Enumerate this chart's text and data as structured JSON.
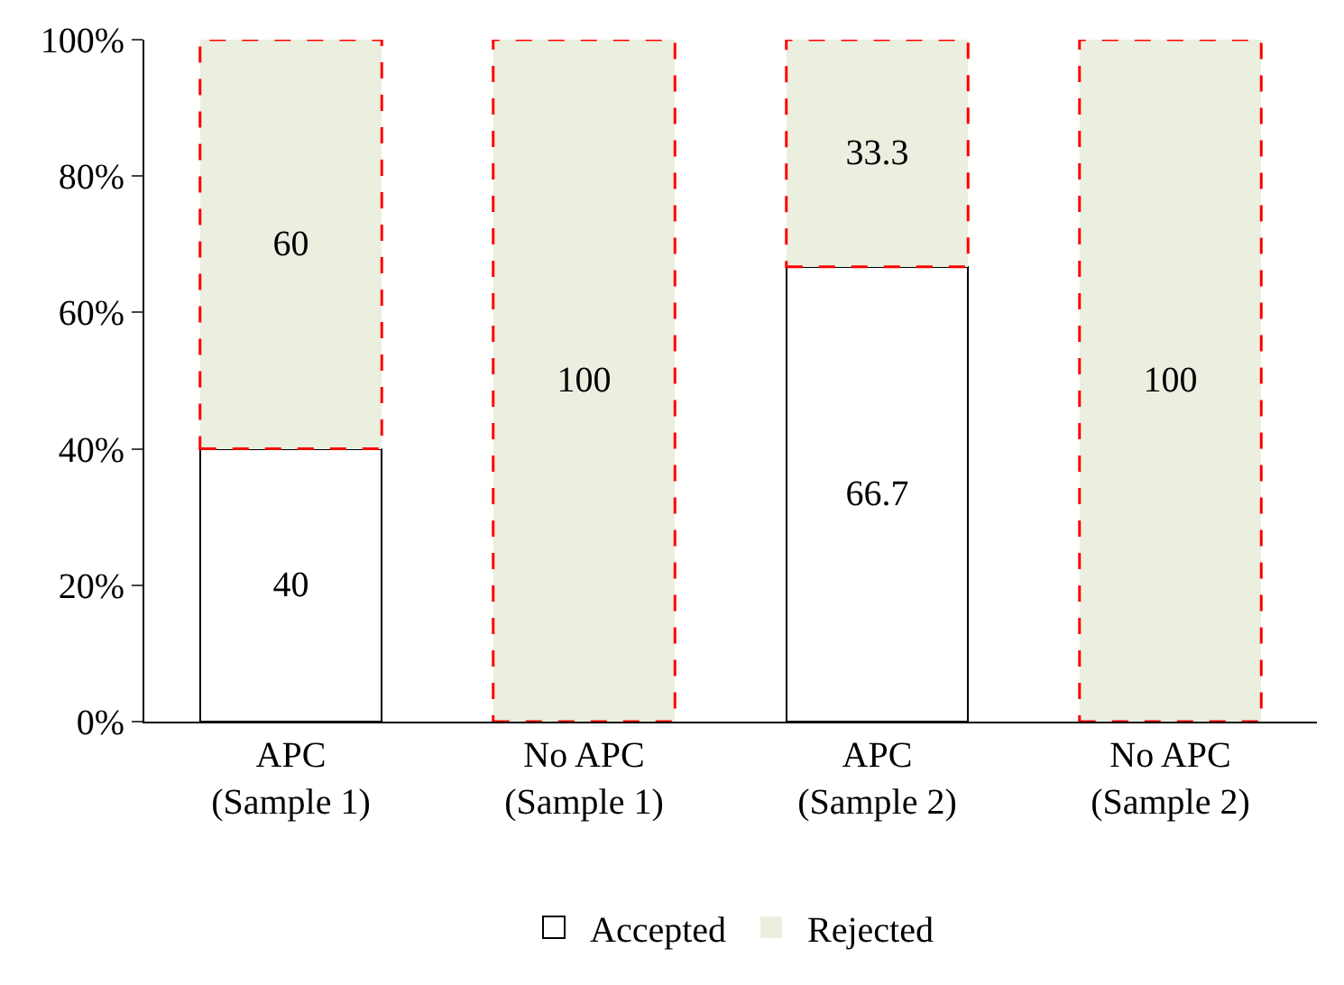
{
  "chart_data": {
    "type": "bar",
    "stacked": true,
    "categories": [
      "APC\n(Sample 1)",
      "No APC\n(Sample 1)",
      "APC\n(Sample 2)",
      "No APC\n(Sample 2)"
    ],
    "series": [
      {
        "name": "Accepted",
        "color": "#ffffff",
        "line_style": "solid",
        "values": [
          40,
          0,
          66.7,
          0
        ],
        "value_labels": [
          "40",
          null,
          "66.7",
          null
        ]
      },
      {
        "name": "Rejected",
        "color": "#ebefdf",
        "line_style": "dashed",
        "values": [
          60,
          100,
          33.3,
          100
        ],
        "value_labels": [
          "60",
          "100",
          "33.3",
          "100"
        ]
      }
    ],
    "ylim": [
      0,
      100
    ],
    "yticks": [
      {
        "value": 0,
        "label": "0%"
      },
      {
        "value": 20,
        "label": "20%"
      },
      {
        "value": 40,
        "label": "40%"
      },
      {
        "value": 60,
        "label": "60%"
      },
      {
        "value": 80,
        "label": "80%"
      },
      {
        "value": 100,
        "label": "100%"
      }
    ],
    "legend": "bottom"
  }
}
